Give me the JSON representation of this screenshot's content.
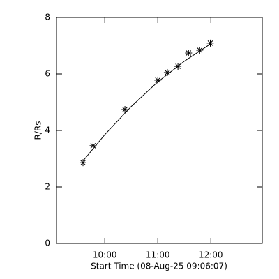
{
  "chart_data": {
    "type": "scatter",
    "xlabel": "Start Time (08-Aug-25 09:06:07)",
    "ylabel": "R/Rs",
    "x": [
      9.59,
      9.78,
      10.38,
      11.0,
      11.18,
      11.38,
      11.58,
      11.79,
      11.99
    ],
    "values": [
      2.86,
      3.46,
      4.74,
      5.78,
      6.05,
      6.27,
      6.74,
      6.84,
      7.09
    ],
    "fit": {
      "x": [
        9.59,
        10.0,
        10.5,
        11.0,
        11.5,
        12.0
      ],
      "values": [
        2.92,
        3.85,
        4.85,
        5.72,
        6.45,
        7.07
      ]
    },
    "color": "#000000",
    "xlim": [
      9.09,
      12.97
    ],
    "xticks": [
      {
        "value": 10,
        "label": "10:00"
      },
      {
        "value": 11,
        "label": "11:00"
      },
      {
        "value": 12,
        "label": "12:00"
      }
    ],
    "ylim": [
      0,
      8
    ],
    "yticks": [
      0,
      2,
      4,
      6,
      8
    ]
  }
}
